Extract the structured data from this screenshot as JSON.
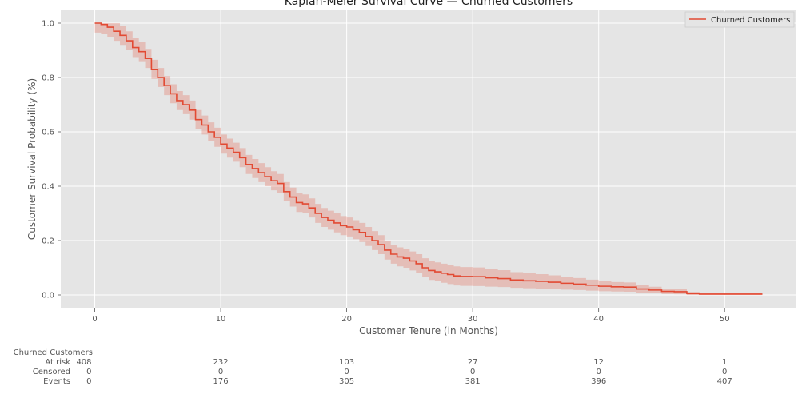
{
  "chart_data": {
    "type": "line",
    "title": "Kaplan-Meier Survival Curve — Churned Customers",
    "xlabel": "Customer Tenure (in Months)",
    "ylabel": "Customer Survival Probability (%)",
    "xlim": [
      -2.7,
      55.7
    ],
    "ylim": [
      -0.05,
      1.05
    ],
    "xticks": [
      0,
      10,
      20,
      30,
      40,
      50
    ],
    "yticks": [
      0.0,
      0.2,
      0.4,
      0.6,
      0.8,
      1.0
    ],
    "xtick_labels": [
      "0",
      "10",
      "20",
      "30",
      "40",
      "50"
    ],
    "ytick_labels": [
      "0.0",
      "0.2",
      "0.4",
      "0.6",
      "0.8",
      "1.0"
    ],
    "grid": true,
    "legend_position": "top-right",
    "series": [
      {
        "name": "Churned Customers",
        "color": "#e24a33",
        "x": [
          0,
          0.5,
          1,
          1.5,
          2,
          2.5,
          3,
          3.5,
          4,
          4.5,
          5,
          5.5,
          6,
          6.5,
          7,
          7.5,
          8,
          8.5,
          9,
          9.5,
          10,
          10.5,
          11,
          11.5,
          12,
          12.5,
          13,
          13.5,
          14,
          14.5,
          15,
          15.5,
          16,
          16.5,
          17,
          17.5,
          18,
          18.5,
          19,
          19.5,
          20,
          20.5,
          21,
          21.5,
          22,
          22.5,
          23,
          23.5,
          24,
          24.5,
          25,
          25.5,
          26,
          26.5,
          27,
          27.5,
          28,
          28.5,
          29,
          30,
          31,
          32,
          33,
          34,
          35,
          36,
          37,
          38,
          39,
          40,
          41,
          42,
          43,
          44,
          45,
          46,
          47,
          48,
          49,
          50,
          51,
          52,
          53
        ],
        "y": [
          1.0,
          0.995,
          0.985,
          0.97,
          0.955,
          0.935,
          0.91,
          0.895,
          0.87,
          0.83,
          0.8,
          0.77,
          0.74,
          0.715,
          0.7,
          0.68,
          0.645,
          0.625,
          0.6,
          0.58,
          0.555,
          0.54,
          0.525,
          0.505,
          0.48,
          0.465,
          0.45,
          0.435,
          0.42,
          0.41,
          0.38,
          0.36,
          0.34,
          0.335,
          0.32,
          0.3,
          0.285,
          0.275,
          0.265,
          0.255,
          0.25,
          0.24,
          0.23,
          0.215,
          0.2,
          0.185,
          0.165,
          0.15,
          0.14,
          0.135,
          0.125,
          0.115,
          0.1,
          0.09,
          0.085,
          0.08,
          0.075,
          0.07,
          0.068,
          0.067,
          0.063,
          0.06,
          0.055,
          0.052,
          0.05,
          0.047,
          0.043,
          0.04,
          0.036,
          0.032,
          0.03,
          0.029,
          0.022,
          0.018,
          0.013,
          0.012,
          0.005,
          0.003,
          0.003,
          0.003,
          0.003,
          0.003,
          0.003
        ],
        "ci_width": 0.035
      }
    ],
    "at_risk_table": {
      "group_label": "Churned Customers",
      "times": [
        0,
        10,
        20,
        30,
        40,
        50
      ],
      "rows": [
        {
          "label": "At risk",
          "values": [
            "408",
            "232",
            "103",
            "27",
            "12",
            "1"
          ]
        },
        {
          "label": "Censored",
          "values": [
            "0",
            "0",
            "0",
            "0",
            "0",
            "0"
          ]
        },
        {
          "label": "Events",
          "values": [
            "0",
            "176",
            "305",
            "381",
            "396",
            "407"
          ]
        }
      ]
    }
  }
}
